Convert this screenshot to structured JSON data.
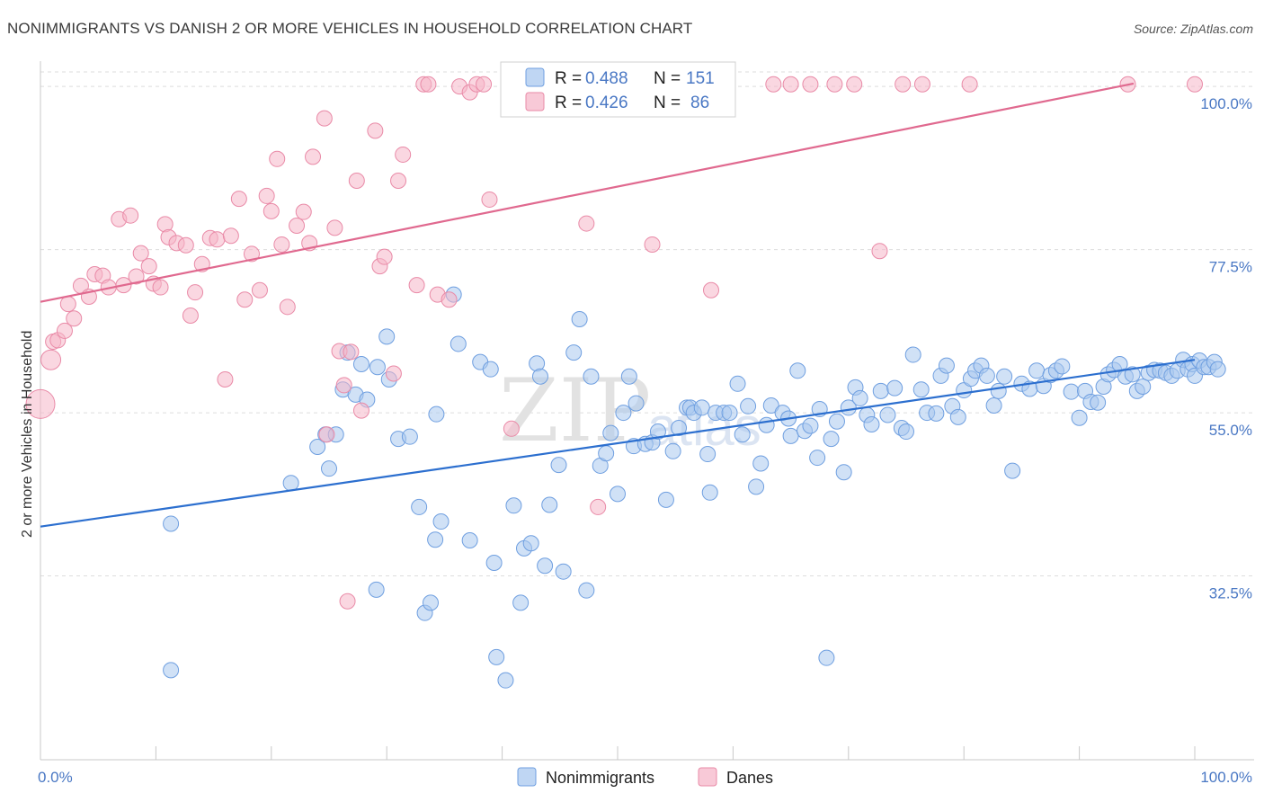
{
  "title": "NONIMMIGRANTS VS DANISH 2 OR MORE VEHICLES IN HOUSEHOLD CORRELATION CHART",
  "source": "Source: ZipAtlas.com",
  "watermark": {
    "main": "ZIP",
    "sub": "atlas"
  },
  "legend": {
    "rows": [
      {
        "r_label": "R =",
        "r_value": "0.488",
        "n_label": "N =",
        "n_value": "151",
        "color": "#a9c8ef"
      },
      {
        "r_label": "R =",
        "r_value": "0.426",
        "n_label": "N =",
        "n_value": "86",
        "color": "#f6b7c9"
      }
    ]
  },
  "colors": {
    "blue_fill": "#a9c8ef",
    "blue_stroke": "#6f9fe0",
    "blue_line": "#2c6fcf",
    "pink_fill": "#f6b7c9",
    "pink_stroke": "#e98aa7",
    "pink_line": "#e0698f",
    "tick_text": "#4a78c4"
  },
  "chart_data": {
    "type": "scatter",
    "title": "NONIMMIGRANTS VS DANISH 2 OR MORE VEHICLES IN HOUSEHOLD CORRELATION CHART",
    "xlabel": "",
    "ylabel": "2 or more Vehicles in Household",
    "xlim": [
      0,
      100
    ],
    "ylim": [
      10,
      102
    ],
    "x_tick_labels": [
      "0.0%",
      "100.0%"
    ],
    "y_tick_labels": [
      "32.5%",
      "55.0%",
      "77.5%",
      "100.0%"
    ],
    "y_ticks": [
      32.5,
      55.0,
      77.5,
      100.0
    ],
    "grid": true,
    "legend_position": "top-center",
    "series": [
      {
        "name": "Nonimmigrants",
        "r": 0.488,
        "n": 151,
        "trend": {
          "x": [
            0,
            100
          ],
          "y": [
            39.3,
            62.3
          ]
        },
        "points": [
          [
            11.3,
            39.7
          ],
          [
            11.3,
            19.5
          ],
          [
            21.7,
            45.3
          ],
          [
            24.0,
            50.3
          ],
          [
            24.7,
            52.0
          ],
          [
            25.0,
            47.3
          ],
          [
            25.6,
            52.0
          ],
          [
            26.2,
            58.2
          ],
          [
            26.6,
            63.3
          ],
          [
            27.3,
            57.5
          ],
          [
            27.8,
            61.7
          ],
          [
            28.3,
            56.8
          ],
          [
            29.1,
            30.6
          ],
          [
            29.2,
            61.3
          ],
          [
            30.0,
            65.5
          ],
          [
            30.2,
            59.6
          ],
          [
            31.0,
            51.4
          ],
          [
            32.0,
            51.7
          ],
          [
            32.8,
            42.0
          ],
          [
            33.3,
            27.4
          ],
          [
            33.8,
            28.8
          ],
          [
            34.2,
            37.5
          ],
          [
            34.3,
            54.8
          ],
          [
            34.7,
            40.0
          ],
          [
            35.8,
            71.3
          ],
          [
            36.2,
            64.5
          ],
          [
            37.2,
            37.4
          ],
          [
            38.1,
            62.0
          ],
          [
            39.0,
            61.0
          ],
          [
            39.3,
            34.3
          ],
          [
            39.5,
            21.3
          ],
          [
            40.3,
            18.1
          ],
          [
            41.0,
            42.2
          ],
          [
            41.6,
            28.8
          ],
          [
            41.9,
            36.3
          ],
          [
            42.5,
            37.0
          ],
          [
            43.0,
            61.8
          ],
          [
            43.3,
            60.0
          ],
          [
            43.7,
            33.9
          ],
          [
            44.1,
            42.3
          ],
          [
            44.9,
            47.8
          ],
          [
            45.3,
            33.1
          ],
          [
            46.2,
            63.3
          ],
          [
            46.7,
            67.9
          ],
          [
            47.3,
            30.5
          ],
          [
            47.7,
            60.0
          ],
          [
            48.5,
            47.7
          ],
          [
            49.0,
            49.4
          ],
          [
            49.4,
            52.2
          ],
          [
            50.0,
            43.8
          ],
          [
            50.5,
            55.0
          ],
          [
            51.0,
            60.0
          ],
          [
            51.4,
            50.4
          ],
          [
            51.6,
            56.3
          ],
          [
            52.4,
            50.7
          ],
          [
            53.0,
            50.9
          ],
          [
            53.5,
            52.4
          ],
          [
            54.2,
            43.0
          ],
          [
            54.8,
            49.7
          ],
          [
            55.3,
            52.9
          ],
          [
            56.0,
            55.7
          ],
          [
            56.3,
            55.7
          ],
          [
            56.6,
            55.0
          ],
          [
            57.3,
            55.7
          ],
          [
            57.8,
            49.3
          ],
          [
            58.0,
            44.0
          ],
          [
            58.5,
            55.0
          ],
          [
            59.2,
            55.0
          ],
          [
            59.7,
            55.0
          ],
          [
            60.4,
            59.0
          ],
          [
            60.8,
            52.0
          ],
          [
            61.3,
            55.9
          ],
          [
            62.0,
            44.8
          ],
          [
            62.4,
            48.0
          ],
          [
            62.9,
            53.3
          ],
          [
            63.3,
            56.0
          ],
          [
            64.3,
            55.0
          ],
          [
            64.8,
            54.2
          ],
          [
            65.0,
            51.8
          ],
          [
            65.6,
            60.8
          ],
          [
            66.2,
            52.5
          ],
          [
            66.7,
            53.2
          ],
          [
            67.3,
            48.8
          ],
          [
            67.5,
            55.5
          ],
          [
            68.1,
            21.2
          ],
          [
            68.5,
            51.4
          ],
          [
            69.0,
            53.8
          ],
          [
            69.6,
            46.8
          ],
          [
            70.0,
            55.7
          ],
          [
            70.6,
            58.5
          ],
          [
            71.0,
            57.0
          ],
          [
            71.6,
            54.7
          ],
          [
            72.0,
            53.4
          ],
          [
            72.8,
            58.0
          ],
          [
            73.4,
            54.7
          ],
          [
            74.0,
            58.4
          ],
          [
            74.6,
            52.9
          ],
          [
            75.0,
            52.4
          ],
          [
            75.6,
            63.0
          ],
          [
            76.3,
            58.2
          ],
          [
            76.8,
            55.0
          ],
          [
            77.6,
            54.9
          ],
          [
            78.0,
            60.1
          ],
          [
            78.5,
            61.5
          ],
          [
            79.0,
            55.9
          ],
          [
            79.5,
            54.4
          ],
          [
            80.0,
            58.1
          ],
          [
            80.6,
            59.7
          ],
          [
            81.0,
            60.8
          ],
          [
            81.5,
            61.5
          ],
          [
            82.0,
            60.1
          ],
          [
            82.6,
            56.0
          ],
          [
            83.0,
            58.0
          ],
          [
            83.5,
            60.0
          ],
          [
            84.2,
            47.0
          ],
          [
            85.0,
            59.0
          ],
          [
            85.7,
            58.3
          ],
          [
            86.3,
            60.8
          ],
          [
            86.9,
            58.7
          ],
          [
            87.5,
            60.2
          ],
          [
            88.0,
            60.8
          ],
          [
            88.5,
            61.4
          ],
          [
            89.3,
            57.9
          ],
          [
            90.0,
            54.3
          ],
          [
            90.5,
            58.0
          ],
          [
            91.0,
            56.5
          ],
          [
            91.6,
            56.4
          ],
          [
            92.1,
            58.6
          ],
          [
            92.5,
            60.3
          ],
          [
            93.0,
            60.9
          ],
          [
            93.5,
            61.7
          ],
          [
            94.0,
            60.0
          ],
          [
            94.6,
            60.3
          ],
          [
            95.0,
            58.0
          ],
          [
            95.5,
            58.6
          ],
          [
            96.0,
            60.5
          ],
          [
            96.5,
            60.9
          ],
          [
            97.0,
            60.8
          ],
          [
            97.5,
            60.5
          ],
          [
            98.0,
            60.1
          ],
          [
            98.5,
            60.8
          ],
          [
            99.0,
            62.3
          ],
          [
            99.4,
            61.0
          ],
          [
            99.8,
            61.7
          ],
          [
            100.0,
            60.1
          ],
          [
            100.4,
            62.2
          ],
          [
            100.8,
            61.3
          ],
          [
            101.2,
            61.3
          ],
          [
            101.7,
            62.0
          ],
          [
            102.0,
            61.0
          ]
        ]
      },
      {
        "name": "Danes",
        "r": 0.426,
        "n": 86,
        "trend": {
          "x": [
            0,
            94.7
          ],
          "y": [
            70.3,
            100.4
          ]
        },
        "points": [
          [
            0.0,
            56.2
          ],
          [
            0.9,
            62.3
          ],
          [
            1.1,
            64.8
          ],
          [
            1.5,
            65.0
          ],
          [
            2.1,
            66.3
          ],
          [
            2.9,
            68.0
          ],
          [
            2.4,
            70.0
          ],
          [
            3.5,
            72.5
          ],
          [
            4.2,
            71.0
          ],
          [
            4.7,
            74.1
          ],
          [
            5.4,
            73.9
          ],
          [
            5.9,
            72.3
          ],
          [
            6.8,
            81.7
          ],
          [
            7.2,
            72.6
          ],
          [
            7.8,
            82.2
          ],
          [
            8.3,
            73.8
          ],
          [
            8.7,
            77.0
          ],
          [
            9.4,
            75.2
          ],
          [
            9.8,
            72.8
          ],
          [
            10.4,
            72.3
          ],
          [
            10.8,
            81.0
          ],
          [
            11.1,
            79.2
          ],
          [
            11.8,
            78.4
          ],
          [
            12.6,
            78.1
          ],
          [
            13.0,
            68.4
          ],
          [
            13.4,
            71.6
          ],
          [
            14.0,
            75.5
          ],
          [
            14.7,
            79.1
          ],
          [
            15.3,
            78.9
          ],
          [
            16.0,
            59.6
          ],
          [
            16.5,
            79.4
          ],
          [
            17.2,
            84.5
          ],
          [
            17.7,
            70.6
          ],
          [
            18.3,
            76.9
          ],
          [
            19.0,
            71.9
          ],
          [
            19.6,
            84.9
          ],
          [
            20.0,
            82.8
          ],
          [
            20.5,
            90.0
          ],
          [
            20.9,
            78.2
          ],
          [
            21.4,
            69.6
          ],
          [
            22.2,
            80.8
          ],
          [
            22.8,
            82.7
          ],
          [
            23.3,
            78.4
          ],
          [
            23.6,
            90.3
          ],
          [
            24.6,
            95.6
          ],
          [
            24.8,
            52.0
          ],
          [
            25.5,
            80.5
          ],
          [
            25.9,
            63.5
          ],
          [
            26.3,
            58.8
          ],
          [
            26.6,
            29.0
          ],
          [
            26.9,
            63.4
          ],
          [
            27.4,
            87.0
          ],
          [
            27.8,
            55.3
          ],
          [
            29.0,
            93.9
          ],
          [
            29.4,
            75.2
          ],
          [
            29.8,
            76.5
          ],
          [
            30.6,
            60.4
          ],
          [
            31.0,
            87.0
          ],
          [
            31.4,
            90.6
          ],
          [
            32.6,
            72.6
          ],
          [
            33.2,
            100.3
          ],
          [
            33.6,
            100.3
          ],
          [
            34.4,
            71.3
          ],
          [
            35.4,
            70.6
          ],
          [
            36.3,
            100.0
          ],
          [
            37.2,
            99.2
          ],
          [
            37.8,
            100.3
          ],
          [
            38.4,
            100.3
          ],
          [
            38.9,
            84.4
          ],
          [
            40.8,
            52.8
          ],
          [
            41.0,
            100.3
          ],
          [
            47.3,
            81.1
          ],
          [
            48.3,
            42.0
          ],
          [
            53.0,
            78.2
          ],
          [
            58.1,
            71.9
          ],
          [
            63.5,
            100.3
          ],
          [
            65.0,
            100.3
          ],
          [
            66.7,
            100.3
          ],
          [
            68.8,
            100.3
          ],
          [
            70.5,
            100.3
          ],
          [
            72.7,
            77.3
          ],
          [
            74.7,
            100.3
          ],
          [
            76.4,
            100.3
          ],
          [
            80.5,
            100.3
          ],
          [
            94.2,
            100.3
          ],
          [
            100.0,
            100.3
          ]
        ]
      }
    ]
  },
  "bottom_legend": [
    {
      "label": "Nonimmigrants",
      "color": "#a9c8ef"
    },
    {
      "label": "Danes",
      "color": "#f6b7c9"
    }
  ]
}
